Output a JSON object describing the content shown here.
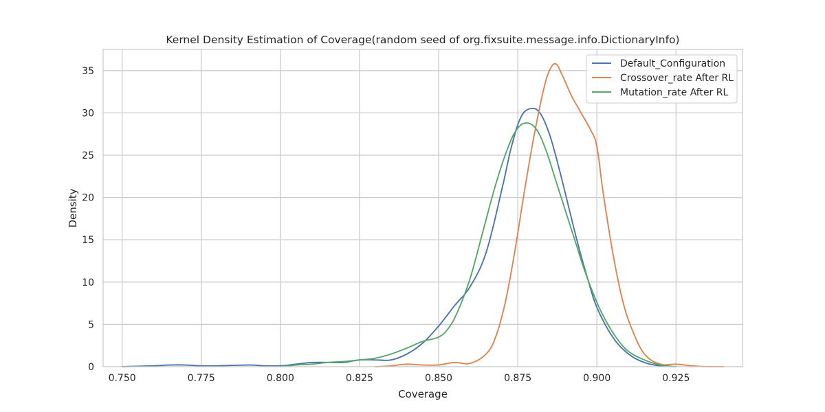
{
  "chart_data": {
    "type": "line",
    "title": "Kernel Density Estimation of Coverage(random seed of org.fixsuite.message.info.DictionaryInfo)",
    "xlabel": "Coverage",
    "ylabel": "Density",
    "xlim": [
      0.744,
      0.946
    ],
    "ylim": [
      0,
      37.5
    ],
    "xticks": [
      0.75,
      0.775,
      0.8,
      0.825,
      0.85,
      0.875,
      0.9,
      0.925
    ],
    "xtick_labels": [
      "0.750",
      "0.775",
      "0.800",
      "0.825",
      "0.850",
      "0.875",
      "0.900",
      "0.925"
    ],
    "yticks": [
      0,
      5,
      10,
      15,
      20,
      25,
      30,
      35
    ],
    "ytick_labels": [
      "0",
      "5",
      "10",
      "15",
      "20",
      "25",
      "30",
      "35"
    ],
    "grid": true,
    "legend_position": "top-right",
    "series": [
      {
        "name": "Default_Configuration",
        "color": "#4c72b0",
        "x": [
          0.75,
          0.76,
          0.765,
          0.77,
          0.775,
          0.78,
          0.79,
          0.795,
          0.8,
          0.805,
          0.81,
          0.815,
          0.82,
          0.825,
          0.83,
          0.835,
          0.84,
          0.845,
          0.85,
          0.855,
          0.86,
          0.865,
          0.87,
          0.873,
          0.876,
          0.879,
          0.882,
          0.885,
          0.888,
          0.891,
          0.894,
          0.897,
          0.9,
          0.905,
          0.91,
          0.915,
          0.92,
          0.925
        ],
        "y": [
          0.0,
          0.1,
          0.2,
          0.2,
          0.1,
          0.1,
          0.2,
          0.1,
          0.1,
          0.3,
          0.5,
          0.5,
          0.5,
          0.8,
          0.8,
          0.8,
          1.5,
          2.8,
          4.8,
          7.2,
          9.5,
          13.5,
          21.0,
          26.0,
          29.5,
          30.5,
          30.0,
          27.5,
          23.5,
          19.0,
          14.5,
          10.5,
          7.0,
          3.5,
          1.5,
          0.5,
          0.1,
          0.0
        ]
      },
      {
        "name": "Crossover_rate After RL",
        "color": "#dd8452",
        "x": [
          0.83,
          0.835,
          0.84,
          0.845,
          0.85,
          0.855,
          0.86,
          0.865,
          0.868,
          0.871,
          0.874,
          0.877,
          0.88,
          0.883,
          0.885,
          0.887,
          0.889,
          0.892,
          0.895,
          0.898,
          0.9,
          0.902,
          0.905,
          0.908,
          0.911,
          0.915,
          0.92,
          0.925,
          0.93,
          0.935,
          0.94
        ],
        "y": [
          0.0,
          0.1,
          0.3,
          0.2,
          0.2,
          0.5,
          0.4,
          1.5,
          3.5,
          7.5,
          13.5,
          20.5,
          27.0,
          32.5,
          35.0,
          35.8,
          34.5,
          32.0,
          30.0,
          28.0,
          26.0,
          20.5,
          13.5,
          8.0,
          4.5,
          1.5,
          0.3,
          0.3,
          0.1,
          0.0,
          0.0
        ]
      },
      {
        "name": "Mutation_rate After RL",
        "color": "#55a868",
        "x": [
          0.8,
          0.805,
          0.81,
          0.815,
          0.82,
          0.825,
          0.83,
          0.835,
          0.84,
          0.845,
          0.85,
          0.853,
          0.856,
          0.86,
          0.864,
          0.868,
          0.872,
          0.875,
          0.878,
          0.881,
          0.884,
          0.887,
          0.89,
          0.893,
          0.896,
          0.899,
          0.902,
          0.906,
          0.91,
          0.915,
          0.92,
          0.925
        ],
        "y": [
          0.0,
          0.2,
          0.3,
          0.5,
          0.6,
          0.8,
          1.0,
          1.5,
          2.2,
          3.0,
          3.5,
          4.5,
          6.5,
          10.5,
          16.0,
          21.5,
          26.0,
          28.2,
          28.8,
          28.0,
          25.5,
          22.0,
          18.5,
          15.0,
          11.5,
          8.5,
          6.0,
          3.5,
          1.8,
          0.8,
          0.2,
          0.0
        ]
      }
    ]
  }
}
